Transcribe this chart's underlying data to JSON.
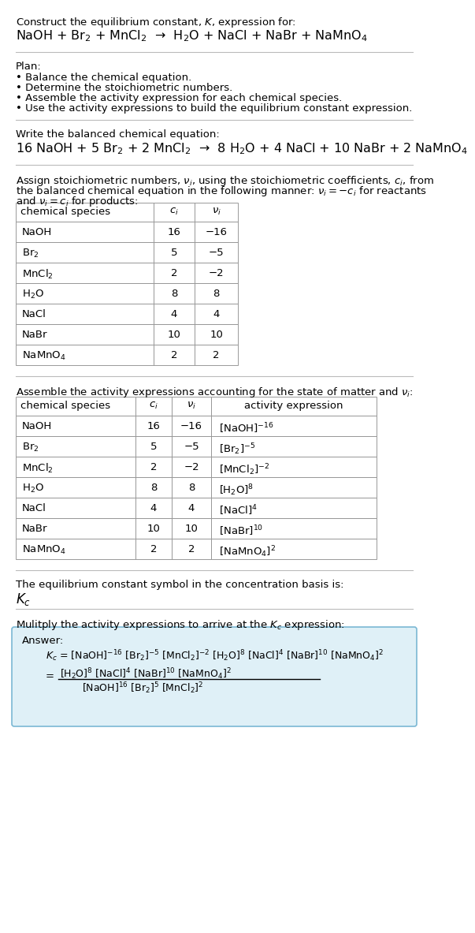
{
  "bg_color": "#ffffff",
  "text_color": "#000000",
  "title_line1": "Construct the equilibrium constant, $K$, expression for:",
  "title_line2": "NaOH + Br$_2$ + MnCl$_2$  →  H$_2$O + NaCl + NaBr + NaMnO$_4$",
  "plan_header": "Plan:",
  "plan_items": [
    "• Balance the chemical equation.",
    "• Determine the stoichiometric numbers.",
    "• Assemble the activity expression for each chemical species.",
    "• Use the activity expressions to build the equilibrium constant expression."
  ],
  "balanced_eq_header": "Write the balanced chemical equation:",
  "balanced_eq": "16 NaOH + 5 Br$_2$ + 2 MnCl$_2$  →  8 H$_2$O + 4 NaCl + 10 NaBr + 2 NaMnO$_4$",
  "stoich_intro1": "Assign stoichiometric numbers, $\\nu_i$, using the stoichiometric coefficients, $c_i$, from",
  "stoich_intro2": "the balanced chemical equation in the following manner: $\\nu_i = -c_i$ for reactants",
  "stoich_intro3": "and $\\nu_i = c_i$ for products:",
  "table1_headers": [
    "chemical species",
    "$c_i$",
    "$\\nu_i$"
  ],
  "table1_rows": [
    [
      "NaOH",
      "16",
      "−16"
    ],
    [
      "Br$_2$",
      "5",
      "−5"
    ],
    [
      "MnCl$_2$",
      "2",
      "−2"
    ],
    [
      "H$_2$O",
      "8",
      "8"
    ],
    [
      "NaCl",
      "4",
      "4"
    ],
    [
      "NaBr",
      "10",
      "10"
    ],
    [
      "NaMnO$_4$",
      "2",
      "2"
    ]
  ],
  "activity_intro": "Assemble the activity expressions accounting for the state of matter and $\\nu_i$:",
  "table2_headers": [
    "chemical species",
    "$c_i$",
    "$\\nu_i$",
    "activity expression"
  ],
  "table2_rows": [
    [
      "NaOH",
      "16",
      "−16",
      "[NaOH]$^{-16}$"
    ],
    [
      "Br$_2$",
      "5",
      "−5",
      "[Br$_2$]$^{-5}$"
    ],
    [
      "MnCl$_2$",
      "2",
      "−2",
      "[MnCl$_2$]$^{-2}$"
    ],
    [
      "H$_2$O",
      "8",
      "8",
      "[H$_2$O]$^8$"
    ],
    [
      "NaCl",
      "4",
      "4",
      "[NaCl]$^4$"
    ],
    [
      "NaBr",
      "10",
      "10",
      "[NaBr]$^{10}$"
    ],
    [
      "NaMnO$_4$",
      "2",
      "2",
      "[NaMnO$_4$]$^2$"
    ]
  ],
  "kc_intro": "The equilibrium constant symbol in the concentration basis is:",
  "kc_symbol": "$K_c$",
  "multiply_intro": "Mulitply the activity expressions to arrive at the $K_c$ expression:",
  "answer_label": "Answer:",
  "answer_line1": "$K_c$ = [NaOH]$^{-16}$ [Br$_2$]$^{-5}$ [MnCl$_2$]$^{-2}$ [H$_2$O]$^8$ [NaCl]$^4$ [NaBr]$^{10}$ [NaMnO$_4$]$^2$",
  "answer_num": "[H$_2$O]$^8$ [NaCl]$^4$ [NaBr]$^{10}$ [NaMnO$_4$]$^2$",
  "answer_den": "[NaOH]$^{16}$ [Br$_2$]$^5$ [MnCl$_2$]$^2$",
  "answer_box_color": "#dff0f7",
  "answer_box_border": "#7bb8d4",
  "line_color": "#bbbbbb",
  "table_line_color": "#999999",
  "fs": 9.5,
  "fs_title": 10.5,
  "fs_eq": 11.5,
  "fs_kc": 12
}
